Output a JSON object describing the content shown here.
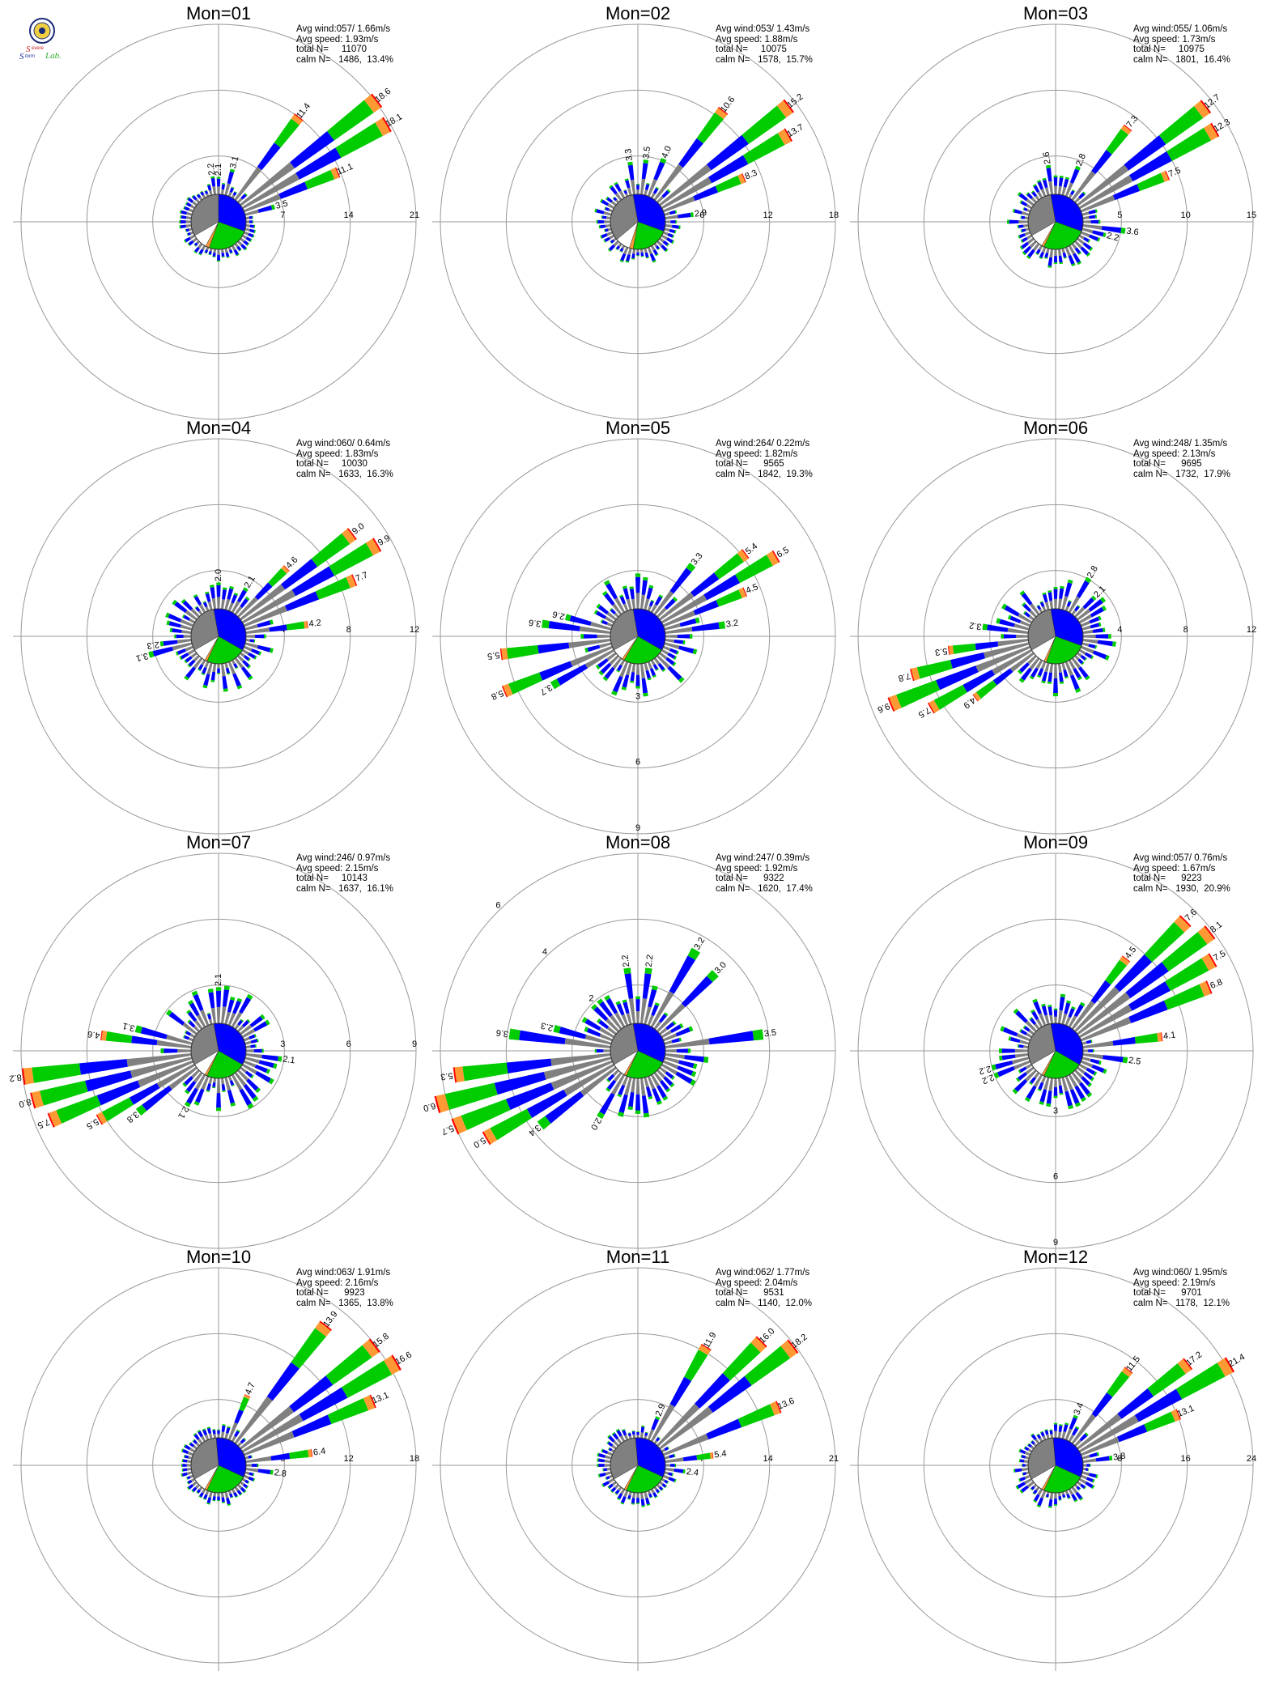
{
  "colors": {
    "gray": "#808080",
    "blue": "#0000ff",
    "green": "#00cc00",
    "orange": "#ff9933",
    "red": "#ff0000",
    "white": "#ffffff",
    "ring": "#999999"
  },
  "logo": {
    "text_top": "Severe",
    "text_mid": "Storm",
    "text_end": "Lab."
  },
  "chart_data": [
    {
      "type": "windrose",
      "title": "Mon=01",
      "stats": {
        "avg_wind": "Avg wind:057/ 1.66m/s",
        "avg_speed": "Avg speed: 1.93m/s",
        "total_n": "total N=     11070",
        "calm_n": "calm N=   1486,  13.4%"
      },
      "rings": [
        7,
        14,
        21
      ],
      "ring_label_angle": 90,
      "ring_labels": [
        "7",
        "14",
        "21"
      ],
      "center_pie": {
        "gray": 120,
        "blue": 110,
        "green": 90,
        "orange": 8,
        "white": 32,
        "start": -120
      },
      "major": [
        {
          "dir": 37.5,
          "value": 11.4
        },
        {
          "dir": 52.5,
          "value": 18.6
        },
        {
          "dir": 60,
          "value": 18.1
        },
        {
          "dir": 67.5,
          "value": 11.1
        },
        {
          "dir": 75,
          "value": 3.5
        },
        {
          "dir": 15,
          "value": 3.1
        },
        {
          "dir": 352.5,
          "value": 2.2
        },
        {
          "dir": 0,
          "value": 2.1
        }
      ],
      "labels": [
        "11.4",
        "18.6",
        "18.1",
        "11.1",
        "3.5",
        "3.1",
        "2.2",
        "2.1"
      ],
      "base_max": 1.6
    },
    {
      "type": "windrose",
      "title": "Mon=02",
      "stats": {
        "avg_wind": "Avg wind:053/ 1.43m/s",
        "avg_speed": "Avg speed: 1.88m/s",
        "total_n": "total N=     10075",
        "calm_n": "calm N=   1578,  15.7%"
      },
      "rings": [
        6,
        12,
        18
      ],
      "ring_label_angle": 90,
      "ring_labels": [
        "6",
        "12",
        "18"
      ],
      "center_pie": {
        "gray": 120,
        "blue": 120,
        "green": 80,
        "orange": 8,
        "white": 32,
        "start": -130
      },
      "major": [
        {
          "dir": 37.5,
          "value": 10.6
        },
        {
          "dir": 52.5,
          "value": 15.2
        },
        {
          "dir": 60,
          "value": 13.7
        },
        {
          "dir": 67.5,
          "value": 8.3
        },
        {
          "dir": 82.5,
          "value": 2.9
        },
        {
          "dir": 22.5,
          "value": 4.0
        },
        {
          "dir": 352.5,
          "value": 3.3
        },
        {
          "dir": 7.5,
          "value": 3.5
        }
      ],
      "labels": [
        "10.6",
        "15.2",
        "13.7",
        "8.3",
        "2.9",
        "4.0",
        "3.3",
        "3.5"
      ],
      "base_max": 2.0
    },
    {
      "type": "windrose",
      "title": "Mon=03",
      "stats": {
        "avg_wind": "Avg wind:055/ 1.06m/s",
        "avg_speed": "Avg speed: 1.73m/s",
        "total_n": "total N=     10975",
        "calm_n": "calm N=   1801,  16.4%"
      },
      "rings": [
        5,
        10,
        15
      ],
      "ring_label_angle": 90,
      "ring_labels": [
        "5",
        "10",
        "15"
      ],
      "center_pie": {
        "gray": 110,
        "blue": 120,
        "green": 95,
        "orange": 5,
        "white": 30,
        "start": -120
      },
      "major": [
        {
          "dir": 37.5,
          "value": 7.3
        },
        {
          "dir": 52.5,
          "value": 12.7
        },
        {
          "dir": 60,
          "value": 12.3
        },
        {
          "dir": 67.5,
          "value": 7.5
        },
        {
          "dir": 97.5,
          "value": 3.6
        },
        {
          "dir": 22.5,
          "value": 2.8
        },
        {
          "dir": 352.5,
          "value": 2.6
        },
        {
          "dir": 105,
          "value": 2.2
        }
      ],
      "labels": [
        "7.3",
        "12.7",
        "12.3",
        "7.5",
        "3.6",
        "2.8",
        "2.6",
        "2.2"
      ],
      "base_max": 2.0
    },
    {
      "type": "windrose",
      "title": "Mon=04",
      "stats": {
        "avg_wind": "Avg wind:060/ 0.64m/s",
        "avg_speed": "Avg speed: 1.83m/s",
        "total_n": "total N=     10030",
        "calm_n": "calm N=   1633,  16.3%"
      },
      "rings": [
        4,
        8,
        12
      ],
      "ring_label_angle": 90,
      "ring_labels": [
        "4",
        "8",
        "12"
      ],
      "center_pie": {
        "gray": 110,
        "blue": 130,
        "green": 85,
        "orange": 5,
        "white": 30,
        "start": -120
      },
      "major": [
        {
          "dir": 45,
          "value": 4.6
        },
        {
          "dir": 52.5,
          "value": 9.0
        },
        {
          "dir": 60,
          "value": 9.9
        },
        {
          "dir": 67.5,
          "value": 7.7
        },
        {
          "dir": 82.5,
          "value": 4.2
        },
        {
          "dir": 30,
          "value": 2.1
        },
        {
          "dir": 0,
          "value": 2.0
        },
        {
          "dir": 255,
          "value": 3.1
        },
        {
          "dir": 262.5,
          "value": 2.3
        }
      ],
      "labels": [
        "4.6",
        "9.0",
        "9.9",
        "7.7",
        "4.2",
        "2.1",
        "2.0",
        "3.1",
        "2.3"
      ],
      "base_max": 2.2
    },
    {
      "type": "windrose",
      "title": "Mon=05",
      "stats": {
        "avg_wind": "Avg wind:264/ 0.22m/s",
        "avg_speed": "Avg speed: 1.82m/s",
        "total_n": "total N=      9565",
        "calm_n": "calm N=   1842,  19.3%"
      },
      "rings": [
        3,
        6,
        9
      ],
      "ring_label_angle": 180,
      "ring_labels": [
        "3",
        "6",
        "9"
      ],
      "center_pie": {
        "gray": 110,
        "blue": 130,
        "green": 90,
        "orange": 5,
        "white": 25,
        "start": -120
      },
      "major": [
        {
          "dir": 37.5,
          "value": 3.3
        },
        {
          "dir": 52.5,
          "value": 5.4
        },
        {
          "dir": 60,
          "value": 6.5
        },
        {
          "dir": 67.5,
          "value": 4.5
        },
        {
          "dir": 82.5,
          "value": 3.2
        },
        {
          "dir": 262.5,
          "value": 5.5
        },
        {
          "dir": 247.5,
          "value": 5.8
        },
        {
          "dir": 240,
          "value": 3.7
        },
        {
          "dir": 277.5,
          "value": 3.6
        },
        {
          "dir": 285,
          "value": 2.6
        }
      ],
      "labels": [
        "3.3",
        "5.4",
        "6.5",
        "4.5",
        "3.2",
        "5.5",
        "5.8",
        "3.7",
        "3.6",
        "2.6"
      ],
      "base_max": 2.2
    },
    {
      "type": "windrose",
      "title": "Mon=06",
      "stats": {
        "avg_wind": "Avg wind:248/ 1.35m/s",
        "avg_speed": "Avg speed: 2.13m/s",
        "total_n": "total N=      9695",
        "calm_n": "calm N=   1732,  17.9%"
      },
      "rings": [
        4,
        8,
        12
      ],
      "ring_label_angle": 90,
      "ring_labels": [
        "4",
        "8",
        "12"
      ],
      "center_pie": {
        "gray": 110,
        "blue": 120,
        "green": 90,
        "orange": 5,
        "white": 35,
        "start": -120
      },
      "major": [
        {
          "dir": 255,
          "value": 7.8
        },
        {
          "dir": 247.5,
          "value": 9.6
        },
        {
          "dir": 240,
          "value": 7.5
        },
        {
          "dir": 232.5,
          "value": 4.9
        },
        {
          "dir": 262.5,
          "value": 5.3
        },
        {
          "dir": 277.5,
          "value": 3.2
        },
        {
          "dir": 30,
          "value": 2.8
        },
        {
          "dir": 45,
          "value": 2.1
        }
      ],
      "labels": [
        "7.8",
        "9.6",
        "7.5",
        "4.9",
        "5.3",
        "3.2",
        "2.8",
        "2.1"
      ],
      "base_max": 2.5
    },
    {
      "type": "windrose",
      "title": "Mon=07",
      "stats": {
        "avg_wind": "Avg wind:246/ 0.97m/s",
        "avg_speed": "Avg speed: 2.15m/s",
        "total_n": "total N=     10143",
        "calm_n": "calm N=   1637,  16.1%"
      },
      "rings": [
        3,
        6,
        9
      ],
      "ring_label_angle": 90,
      "ring_labels": [
        "3",
        "6",
        "9"
      ],
      "center_pie": {
        "gray": 110,
        "blue": 130,
        "green": 85,
        "orange": 5,
        "white": 30,
        "start": -120
      },
      "major": [
        {
          "dir": 262.5,
          "value": 8.2
        },
        {
          "dir": 255,
          "value": 8.0
        },
        {
          "dir": 247.5,
          "value": 7.5
        },
        {
          "dir": 240,
          "value": 5.5
        },
        {
          "dir": 232.5,
          "value": 3.8
        },
        {
          "dir": 277.5,
          "value": 4.6
        },
        {
          "dir": 285,
          "value": 3.1
        },
        {
          "dir": 0,
          "value": 2.1
        },
        {
          "dir": 97.5,
          "value": 2.1
        },
        {
          "dir": 210,
          "value": 2.1
        }
      ],
      "labels": [
        "8.2",
        "8.0",
        "7.5",
        "5.5",
        "3.8",
        "4.6",
        "3.1",
        "2.1",
        "2.1",
        "2.1"
      ],
      "base_max": 2.2
    },
    {
      "type": "windrose",
      "title": "Mon=08",
      "stats": {
        "avg_wind": "Avg wind:247/ 0.39m/s",
        "avg_speed": "Avg speed: 1.92m/s",
        "total_n": "total N=      9322",
        "calm_n": "calm N=   1620,  17.4%"
      },
      "rings": [
        2,
        4,
        6
      ],
      "ring_label_angle": 315,
      "ring_labels": [
        "2",
        "4",
        "6"
      ],
      "center_pie": {
        "gray": 110,
        "blue": 125,
        "green": 90,
        "orange": 5,
        "white": 30,
        "start": -120
      },
      "major": [
        {
          "dir": 262.5,
          "value": 5.3
        },
        {
          "dir": 255,
          "value": 6.0
        },
        {
          "dir": 247.5,
          "value": 5.7
        },
        {
          "dir": 240,
          "value": 5.0
        },
        {
          "dir": 232.5,
          "value": 3.4
        },
        {
          "dir": 277.5,
          "value": 3.6
        },
        {
          "dir": 285,
          "value": 2.3
        },
        {
          "dir": 82.5,
          "value": 3.5
        },
        {
          "dir": 30,
          "value": 3.2
        },
        {
          "dir": 45,
          "value": 3.0
        },
        {
          "dir": 352.5,
          "value": 2.2
        },
        {
          "dir": 7.5,
          "value": 2.2
        },
        {
          "dir": 210,
          "value": 2.0
        }
      ],
      "labels": [
        "5.3",
        "6.0",
        "5.7",
        "5.0",
        "3.4",
        "3.6",
        "2.3",
        "3.5",
        "3.2",
        "3.0",
        "2.2",
        "2.2",
        "2.0"
      ],
      "base_max": 2.0
    },
    {
      "type": "windrose",
      "title": "Mon=09",
      "stats": {
        "avg_wind": "Avg wind:057/ 0.76m/s",
        "avg_speed": "Avg speed: 1.67m/s",
        "total_n": "total N=      9223",
        "calm_n": "calm N=   1930,  20.9%"
      },
      "rings": [
        3,
        6,
        9
      ],
      "ring_label_angle": 180,
      "ring_labels": [
        "3",
        "6",
        "9"
      ],
      "center_pie": {
        "gray": 110,
        "blue": 130,
        "green": 85,
        "orange": 5,
        "white": 30,
        "start": -120
      },
      "major": [
        {
          "dir": 37.5,
          "value": 4.5
        },
        {
          "dir": 45,
          "value": 7.6
        },
        {
          "dir": 52.5,
          "value": 8.1
        },
        {
          "dir": 60,
          "value": 7.5
        },
        {
          "dir": 67.5,
          "value": 6.8
        },
        {
          "dir": 82.5,
          "value": 4.1
        },
        {
          "dir": 97.5,
          "value": 2.5
        },
        {
          "dir": 247.5,
          "value": 2.2
        },
        {
          "dir": 255,
          "value": 2.2
        }
      ],
      "labels": [
        "4.5",
        "7.6",
        "8.1",
        "7.5",
        "6.8",
        "4.1",
        "2.5",
        "2.2",
        "2.2"
      ],
      "base_max": 2.0
    },
    {
      "type": "windrose",
      "title": "Mon=10",
      "stats": {
        "avg_wind": "Avg wind:063/ 1.91m/s",
        "avg_speed": "Avg speed: 2.16m/s",
        "total_n": "total N=      9923",
        "calm_n": "calm N=   1365,  13.8%"
      },
      "rings": [
        6,
        12,
        18
      ],
      "ring_label_angle": 90,
      "ring_labels": [
        "6",
        "12",
        "18"
      ],
      "center_pie": {
        "gray": 115,
        "blue": 120,
        "green": 90,
        "orange": 5,
        "white": 30,
        "start": -120
      },
      "major": [
        {
          "dir": 37.5,
          "value": 13.9
        },
        {
          "dir": 52.5,
          "value": 15.8
        },
        {
          "dir": 60,
          "value": 16.6
        },
        {
          "dir": 67.5,
          "value": 13.1
        },
        {
          "dir": 82.5,
          "value": 6.4
        },
        {
          "dir": 97.5,
          "value": 2.8
        },
        {
          "dir": 22.5,
          "value": 4.7
        }
      ],
      "labels": [
        "13.9",
        "15.8",
        "16.6",
        "13.1",
        "6.4",
        "2.8",
        "4.7"
      ],
      "base_max": 1.6
    },
    {
      "type": "windrose",
      "title": "Mon=11",
      "stats": {
        "avg_wind": "Avg wind:062/ 1.77m/s",
        "avg_speed": "Avg speed: 2.04m/s",
        "total_n": "total N=      9531",
        "calm_n": "calm N=   1140,  12.0%"
      },
      "rings": [
        7,
        14,
        21
      ],
      "ring_label_angle": 90,
      "ring_labels": [
        "7",
        "14",
        "21"
      ],
      "center_pie": {
        "gray": 115,
        "blue": 120,
        "green": 90,
        "orange": 5,
        "white": 30,
        "start": -120
      },
      "major": [
        {
          "dir": 30,
          "value": 11.9
        },
        {
          "dir": 45,
          "value": 16.0
        },
        {
          "dir": 52.5,
          "value": 18.2
        },
        {
          "dir": 67.5,
          "value": 13.6
        },
        {
          "dir": 82.5,
          "value": 5.4
        },
        {
          "dir": 97.5,
          "value": 2.4
        },
        {
          "dir": 22.5,
          "value": 2.9
        }
      ],
      "labels": [
        "11.9",
        "16.0",
        "18.2",
        "13.6",
        "5.4",
        "2.4",
        "2.9"
      ],
      "base_max": 1.8
    },
    {
      "type": "windrose",
      "title": "Mon=12",
      "stats": {
        "avg_wind": "Avg wind:060/ 1.95m/s",
        "avg_speed": "Avg speed: 2.19m/s",
        "total_n": "total N=      9701",
        "calm_n": "calm N=   1178,  12.1%"
      },
      "rings": [
        8,
        16,
        24
      ],
      "ring_label_angle": 90,
      "ring_labels": [
        "8",
        "16",
        "24"
      ],
      "center_pie": {
        "gray": 115,
        "blue": 120,
        "green": 90,
        "orange": 5,
        "white": 30,
        "start": -120
      },
      "major": [
        {
          "dir": 37.5,
          "value": 11.5
        },
        {
          "dir": 52.5,
          "value": 17.2
        },
        {
          "dir": 60,
          "value": 21.4
        },
        {
          "dir": 67.5,
          "value": 13.1
        },
        {
          "dir": 82.5,
          "value": 3.8
        },
        {
          "dir": 22.5,
          "value": 3.4
        }
      ],
      "labels": [
        "11.5",
        "17.2",
        "21.4",
        "13.1",
        "3.8",
        "3.4"
      ],
      "base_max": 2.4
    }
  ]
}
